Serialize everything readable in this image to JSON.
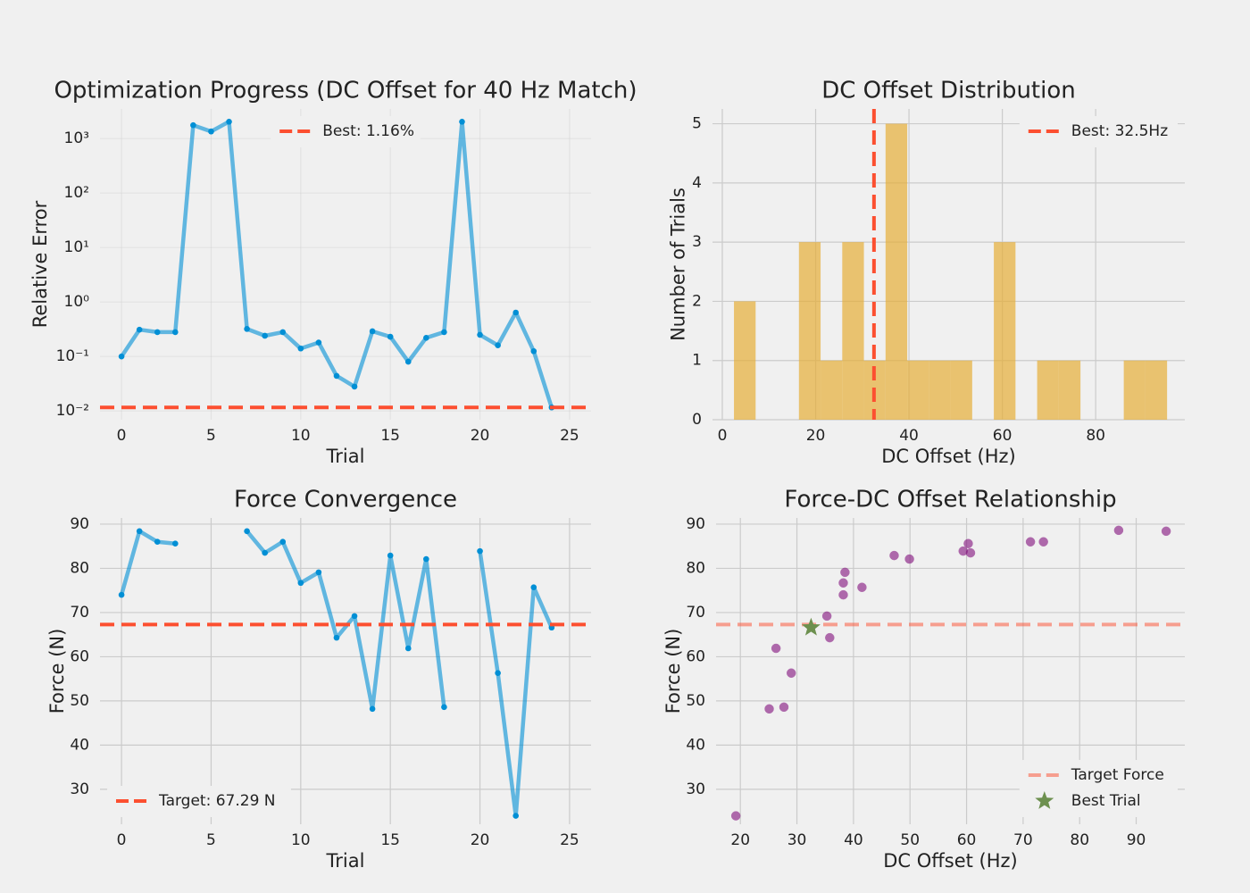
{
  "chart_data": [
    {
      "type": "line",
      "title": "Optimization Progress (DC Offset for 40 Hz Match)",
      "xlabel": "Trial",
      "ylabel": "Relative Error",
      "yscale": "log",
      "x": [
        0,
        1,
        2,
        3,
        4,
        5,
        6,
        7,
        8,
        9,
        10,
        11,
        12,
        13,
        14,
        15,
        16,
        17,
        18,
        19,
        20,
        21,
        22,
        23,
        24
      ],
      "series": [
        {
          "color": "#008fd5",
          "values": [
            0.1,
            0.31,
            0.28,
            0.28,
            1760,
            1350,
            2040,
            0.32,
            0.24,
            0.28,
            0.14,
            0.18,
            0.044,
            0.028,
            0.29,
            0.23,
            0.08,
            0.22,
            0.28,
            2040,
            0.25,
            0.16,
            0.64,
            0.125,
            0.0116
          ]
        }
      ],
      "hlines": [
        {
          "name": "Best: 1.16%",
          "value": 0.0116,
          "color": "#fc4f30"
        }
      ],
      "xlim": [
        -1.2,
        26.2
      ],
      "ylim": [
        0.0069,
        3500
      ],
      "xticks": [
        0,
        5,
        10,
        15,
        20,
        25
      ],
      "yticks": [
        {
          "value": 0.01,
          "label": "10⁻²"
        },
        {
          "value": 0.1,
          "label": "10⁻¹"
        },
        {
          "value": 1,
          "label": "10⁰"
        },
        {
          "value": 10,
          "label": "10¹"
        },
        {
          "value": 100,
          "label": "10²"
        },
        {
          "value": 1000,
          "label": "10³"
        }
      ],
      "grid": true,
      "legend": "upper center"
    },
    {
      "type": "histogram",
      "title": "DC Offset Distribution",
      "xlabel": "DC Offset (Hz)",
      "ylabel": "Number of Trials",
      "bins": [
        2.5,
        7.14,
        11.78,
        16.42,
        21.06,
        25.7,
        30.34,
        34.98,
        39.62,
        44.26,
        48.9,
        53.54,
        58.18,
        62.82,
        67.46,
        72.1,
        76.74,
        81.38,
        86.02,
        90.66,
        95.3
      ],
      "counts": [
        2,
        0,
        0,
        3,
        1,
        3,
        1,
        5,
        1,
        1,
        1,
        0,
        3,
        0,
        1,
        1,
        0,
        0,
        1,
        1
      ],
      "color": "#e5ae38",
      "vlines": [
        {
          "name": "Best: 32.5Hz",
          "value": 32.5,
          "color": "#fc4f30"
        }
      ],
      "xlim": [
        -2.1,
        99.1
      ],
      "ylim": [
        0,
        5.25
      ],
      "xticks": [
        0,
        20,
        40,
        60,
        80
      ],
      "yticks": [
        0,
        1,
        2,
        3,
        4,
        5
      ],
      "grid": true,
      "legend": "upper right"
    },
    {
      "type": "line",
      "title": "Force Convergence",
      "xlabel": "Trial",
      "ylabel": "Force (N)",
      "x": [
        0,
        1,
        2,
        3,
        4,
        5,
        6,
        7,
        8,
        9,
        10,
        11,
        12,
        13,
        14,
        15,
        16,
        17,
        18,
        19,
        20,
        21,
        22,
        23,
        24
      ],
      "series": [
        {
          "color": "#008fd5",
          "values": [
            74.0,
            88.4,
            86.0,
            85.6,
            null,
            null,
            null,
            88.4,
            83.5,
            86.0,
            76.7,
            79.1,
            64.3,
            69.2,
            48.2,
            82.9,
            61.9,
            82.1,
            48.6,
            null,
            83.9,
            56.3,
            24.0,
            75.7,
            66.6
          ]
        }
      ],
      "hlines": [
        {
          "name": "Target: 67.29 N",
          "value": 67.29,
          "color": "#fc4f30"
        }
      ],
      "xlim": [
        -1.2,
        26.2
      ],
      "ylim": [
        22.1,
        91.4
      ],
      "xticks": [
        0,
        5,
        10,
        15,
        20,
        25
      ],
      "yticks": [
        30,
        40,
        50,
        60,
        70,
        80,
        90
      ],
      "grid": true,
      "legend": "lower left"
    },
    {
      "type": "scatter",
      "title": "Force-DC Offset Relationship",
      "xlabel": "DC Offset (Hz)",
      "ylabel": "Force (N)",
      "series": [
        {
          "color": "#810f7c",
          "marker": "circle",
          "x": [
            19.2,
            25.1,
            27.7,
            29.0,
            26.3,
            35.3,
            35.8,
            38.2,
            38.2,
            38.5,
            41.5,
            47.2,
            49.9,
            59.4,
            60.3,
            60.7,
            71.3,
            73.6,
            86.9,
            95.3
          ],
          "values": [
            24.0,
            48.2,
            48.6,
            56.3,
            61.9,
            69.2,
            64.3,
            74.0,
            76.7,
            79.1,
            75.7,
            82.9,
            82.1,
            83.9,
            85.6,
            83.5,
            86.0,
            86.0,
            88.6,
            88.4
          ]
        },
        {
          "name": "Best Trial",
          "color": "#6d904f",
          "marker": "star",
          "x": [
            32.5
          ],
          "values": [
            66.6
          ]
        }
      ],
      "hlines": [
        {
          "name": "Target Force",
          "value": 67.29,
          "color": "#fc4f30",
          "opacity": 0.5
        }
      ],
      "xlim": [
        15.7,
        98.6
      ],
      "ylim": [
        22.1,
        91.4
      ],
      "xticks": [
        20,
        30,
        40,
        50,
        60,
        70,
        80,
        90
      ],
      "yticks": [
        30,
        40,
        50,
        60,
        70,
        80,
        90
      ],
      "grid": true,
      "legend": "lower right"
    }
  ]
}
